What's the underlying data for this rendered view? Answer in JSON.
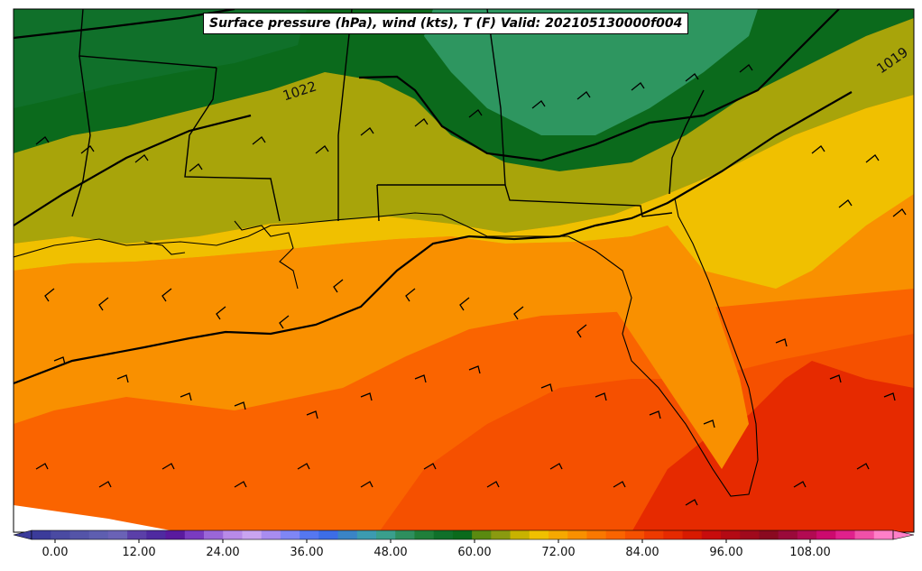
{
  "title": "Surface pressure (hPa), wind (kts), T (F) Valid: 202105130000f004",
  "isobar_labels": [
    "1022",
    "1019"
  ],
  "colorbar": {
    "ticks": [
      "0.00",
      "12.00",
      "24.00",
      "36.00",
      "48.00",
      "60.00",
      "72.00",
      "84.00",
      "96.00",
      "108.00"
    ],
    "colors": [
      "#3b3b9a",
      "#4a4aa2",
      "#5454a8",
      "#5e5eb0",
      "#6a62b6",
      "#5b3fa8",
      "#4f2aa0",
      "#5a1a9e",
      "#7a3bc0",
      "#9a66d8",
      "#b88ae8",
      "#c9a4f0",
      "#a88cf0",
      "#7f86f5",
      "#5577f0",
      "#3d6de6",
      "#3a84c6",
      "#3c9bb0",
      "#3a9f8c",
      "#2e8f5e",
      "#1f7f3a",
      "#10702a",
      "#0b6a1c",
      "#5a8a10",
      "#8a9a10",
      "#c8b200",
      "#f0c000",
      "#f6a800",
      "#f99000",
      "#fa7800",
      "#fa6400",
      "#f55000",
      "#ee3a00",
      "#e62a00",
      "#d81a00",
      "#c80c0c",
      "#b40a14",
      "#a00a1c",
      "#8a0a20",
      "#9a0a3a",
      "#b20a52",
      "#cc0a6e",
      "#e0208c",
      "#f050a8",
      "#ff7fc8"
    ]
  },
  "map": {
    "temperature_fill_colors": {
      "gulf_warm": "#f99000",
      "gulf_warmer": "#fa6400",
      "gulf_hot": "#f55000",
      "gulf_hottest": "#e62a00",
      "coast": "#f0c000",
      "inland_olive": "#a8a40a",
      "north_green": "#10702a",
      "north_dark_green": "#0b6a1c",
      "northeast_teal": "#2e9660"
    },
    "line_color": "#000000"
  }
}
